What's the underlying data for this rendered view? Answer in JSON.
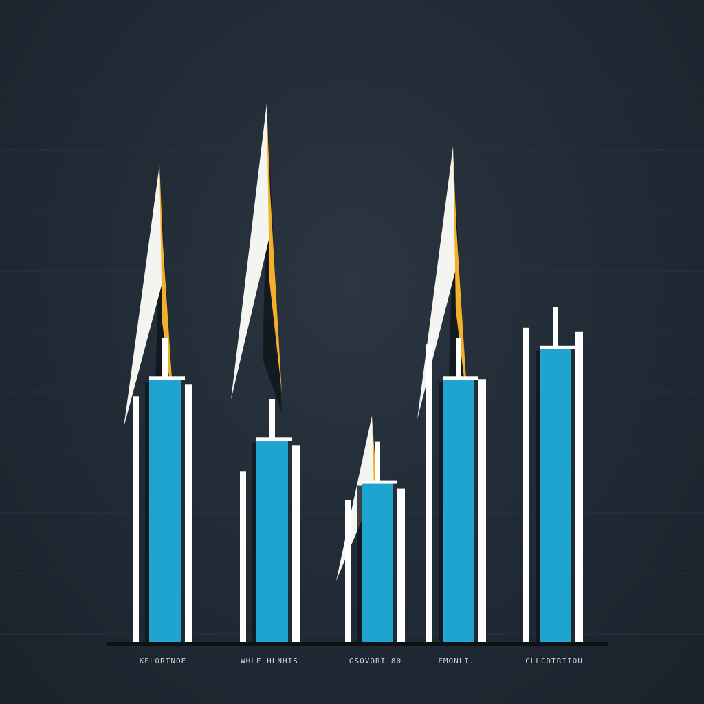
{
  "chart_data": {
    "type": "bar",
    "title": "",
    "xlabel": "",
    "ylabel": "",
    "ylim": [
      0,
      100
    ],
    "grid": true,
    "categories": [
      "KELORTNOE",
      "WHLF HLNHIS",
      "GSOVORI 80",
      "EMONLI.",
      "CLLCDTRIIOU"
    ],
    "series": [
      {
        "values": [
          43,
          33,
          26,
          43,
          48
        ]
      }
    ],
    "spikes": [
      78,
      88,
      37,
      81,
      0
    ],
    "colors": {
      "bar": "#1fa3cf",
      "bar_edge": "#ffffff",
      "spike_gold": "#f3b12a",
      "spike_white": "#f4f4f0",
      "baseline": "#0d1115",
      "grid": "#2a3541"
    }
  }
}
